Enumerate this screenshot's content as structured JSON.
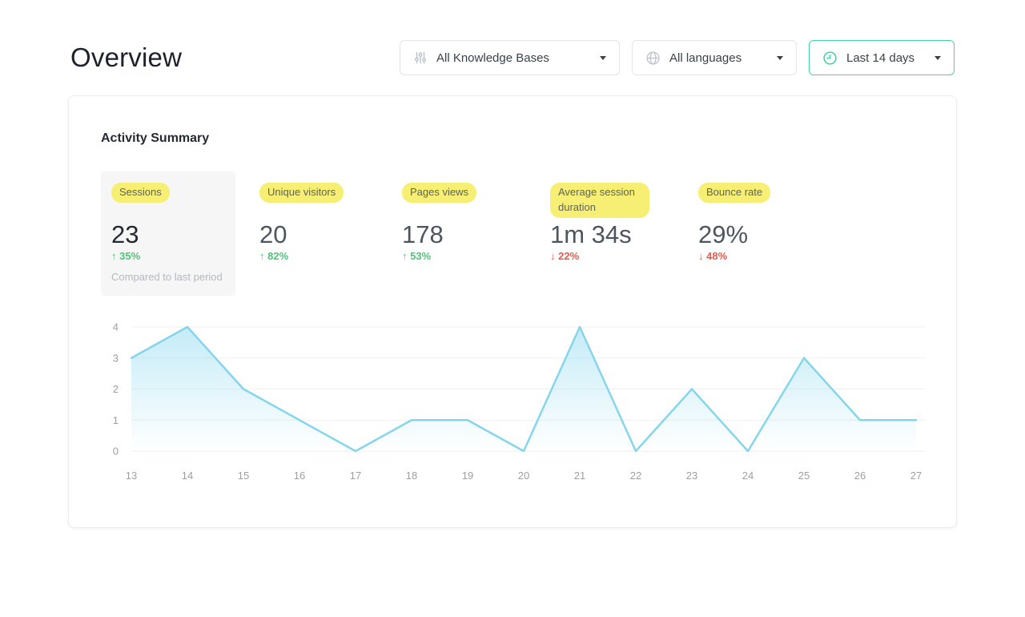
{
  "page": {
    "title": "Overview"
  },
  "filters": {
    "knowledge_bases": {
      "label": "All Knowledge Bases",
      "icon": "sliders-icon"
    },
    "languages": {
      "label": "All languages",
      "icon": "globe-icon"
    },
    "date_range": {
      "label": "Last 14 days",
      "icon": "clock-icon"
    }
  },
  "panel": {
    "title": "Activity Summary"
  },
  "metrics": [
    {
      "label": "Sessions",
      "value": "23",
      "arrow": "↑",
      "change": "35%",
      "direction": "up",
      "note": "Compared to last period",
      "selected": true
    },
    {
      "label": "Unique visitors",
      "value": "20",
      "arrow": "↑",
      "change": "82%",
      "direction": "up"
    },
    {
      "label": "Pages views",
      "value": "178",
      "arrow": "↑",
      "change": "53%",
      "direction": "up"
    },
    {
      "label": "Average session duration",
      "value": "1m 34s",
      "arrow": "↓",
      "change": "22%",
      "direction": "down"
    },
    {
      "label": "Bounce rate",
      "value": "29%",
      "arrow": "↓",
      "change": "48%",
      "direction": "down"
    }
  ],
  "chart_data": {
    "type": "area",
    "x": [
      13,
      14,
      15,
      16,
      17,
      18,
      19,
      20,
      21,
      22,
      23,
      24,
      25,
      26,
      27
    ],
    "values": [
      3,
      4,
      2,
      1,
      0,
      1,
      1,
      0,
      4,
      0,
      2,
      0,
      3,
      1,
      1
    ],
    "yticks": [
      0,
      1,
      2,
      3,
      4
    ],
    "ylim": [
      0,
      4
    ],
    "title": "",
    "xlabel": "",
    "ylabel": "",
    "grid": true,
    "legend": false,
    "line_color": "#85d5ec",
    "fill_color": "#8ad8f0"
  },
  "colors": {
    "accent": "#3fd6a2",
    "yellow": "#f6ef74",
    "green": "#4dc579",
    "red": "#e8584a"
  }
}
